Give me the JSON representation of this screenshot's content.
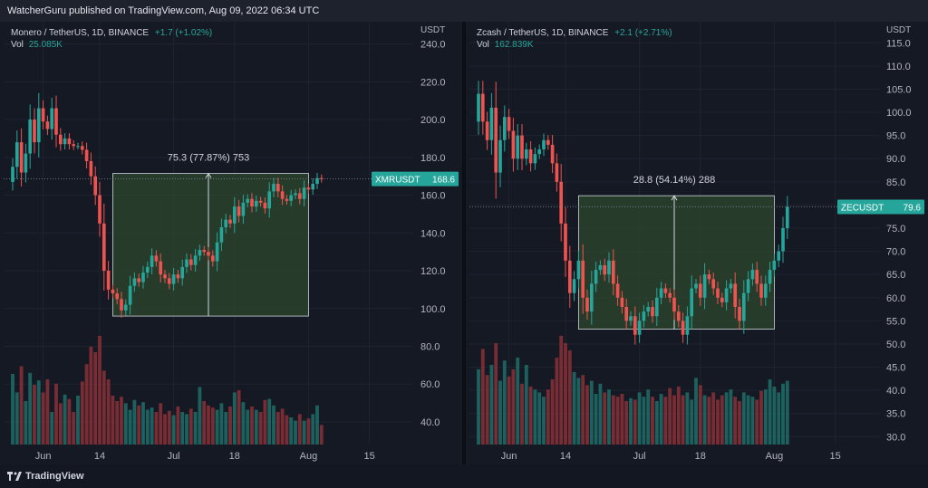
{
  "header": {
    "published": "WatcherGuru published on TradingView.com, Aug 09, 2022 06:34 UTC"
  },
  "footer": {
    "brand": "TradingView"
  },
  "colors": {
    "up": "#26a69a",
    "down": "#ef5350",
    "box_fill": "#2e4a2e",
    "box_line": "#d1d4dc",
    "bg": "#151924",
    "tag": "#26a69a"
  },
  "chart_data": [
    {
      "type": "candlestick",
      "symbol": "Monero / TetherUS, 1D, BINANCE",
      "change": "+1.7 (+1.02%)",
      "vol_label": "Vol",
      "vol_value": "25.085K",
      "currency_label": "USDT",
      "price_tag": "XMRUSDT",
      "price_tag_value": "168.6",
      "last_price": 168.6,
      "ylim": [
        28,
        247
      ],
      "yticks": [
        "240.0",
        "220.0",
        "200.0",
        "180.0",
        "160.0",
        "140.0",
        "120.0",
        "100.0",
        "80.0",
        "60.0",
        "40.0"
      ],
      "ytick_values": [
        240,
        220,
        200,
        180,
        160,
        140,
        120,
        100,
        80,
        60,
        40
      ],
      "xticks": [
        "Jun",
        "14",
        "Jul",
        "18",
        "Aug",
        "15"
      ],
      "xtick_days": [
        7,
        20,
        37,
        51,
        68,
        82
      ],
      "measure": {
        "label": "75.3 (77.87%) 753",
        "start_day": 23,
        "end_day": 68,
        "low": 96,
        "high": 171.5,
        "arrow_day": 45
      },
      "closes": [
        175,
        188,
        172,
        182,
        200,
        188,
        206,
        199,
        195,
        206,
        192,
        187,
        190,
        187,
        186,
        186,
        184,
        178,
        170,
        160,
        145,
        120,
        110,
        108,
        105,
        99,
        102,
        112,
        116,
        114,
        119,
        122,
        128,
        125,
        118,
        116,
        113,
        118,
        116,
        122,
        126,
        123,
        128,
        131,
        130,
        128,
        125,
        135,
        143,
        147,
        145,
        154,
        149,
        156,
        158,
        154,
        157,
        156,
        153,
        162,
        166,
        162,
        158,
        157,
        160,
        161,
        158,
        164,
        163,
        166,
        169,
        168.6
      ],
      "volumes": [
        65,
        48,
        72,
        40,
        66,
        55,
        59,
        48,
        60,
        30,
        56,
        38,
        46,
        42,
        30,
        45,
        58,
        74,
        90,
        85,
        100,
        68,
        60,
        45,
        40,
        44,
        38,
        32,
        41,
        36,
        39,
        32,
        34,
        30,
        38,
        28,
        31,
        27,
        35,
        30,
        28,
        33,
        30,
        53,
        40,
        36,
        34,
        32,
        38,
        30,
        35,
        48,
        50,
        39,
        32,
        35,
        32,
        30,
        41,
        42,
        36,
        30,
        33,
        27,
        25,
        22,
        28,
        22,
        24,
        28,
        36,
        18
      ]
    },
    {
      "type": "candlestick",
      "symbol": "Zcash / TetherUS, 1D, BINANCE",
      "change": "+2.1 (+2.71%)",
      "vol_label": "Vol",
      "vol_value": "162.839K",
      "currency_label": "USDT",
      "price_tag": "ZECUSDT",
      "price_tag_value": "79.6",
      "last_price": 79.6,
      "ylim": [
        28.3,
        117.6
      ],
      "yticks": [
        "115.0",
        "110.0",
        "105.0",
        "100.0",
        "95.0",
        "90.0",
        "85.0",
        "80.0",
        "75.0",
        "70.0",
        "65.0",
        "60.0",
        "55.0",
        "50.0",
        "45.0",
        "40.0",
        "35.0",
        "30.0"
      ],
      "ytick_values": [
        115,
        110,
        105,
        100,
        95,
        90,
        85,
        80,
        75,
        70,
        65,
        60,
        55,
        50,
        45,
        40,
        35,
        30
      ],
      "xticks": [
        "Jun",
        "14",
        "Jul",
        "18",
        "Aug",
        "15"
      ],
      "xtick_days": [
        7,
        20,
        37,
        51,
        68,
        82
      ],
      "measure": {
        "label": "28.8 (54.14%) 288",
        "start_day": 23,
        "end_day": 68,
        "low": 53.2,
        "high": 82,
        "arrow_day": 45
      },
      "closes": [
        104,
        98,
        94,
        101,
        87,
        94,
        99,
        96,
        90,
        95,
        90,
        92,
        89,
        91,
        92,
        94,
        93,
        89,
        85,
        76,
        68,
        61,
        64,
        68,
        60,
        57,
        63,
        66,
        67,
        65,
        68,
        63,
        60,
        58,
        55,
        56,
        52,
        55,
        57,
        58,
        56,
        60,
        62,
        61,
        60,
        57,
        55,
        52,
        56,
        62,
        63,
        60,
        65,
        64,
        62,
        60,
        59,
        62,
        63,
        58,
        55,
        61,
        64,
        66,
        63,
        60,
        63,
        66,
        68,
        70,
        75,
        79.6
      ],
      "volumes": [
        52,
        66,
        48,
        55,
        70,
        44,
        58,
        47,
        52,
        60,
        42,
        55,
        40,
        38,
        36,
        33,
        38,
        45,
        60,
        75,
        70,
        65,
        50,
        46,
        48,
        41,
        44,
        35,
        42,
        36,
        38,
        34,
        33,
        35,
        30,
        32,
        31,
        36,
        33,
        38,
        33,
        30,
        35,
        33,
        39,
        34,
        40,
        34,
        36,
        31,
        46,
        41,
        34,
        33,
        36,
        31,
        34,
        36,
        38,
        33,
        30,
        36,
        34,
        33,
        31,
        37,
        38,
        45,
        40,
        36,
        42,
        44
      ]
    }
  ]
}
